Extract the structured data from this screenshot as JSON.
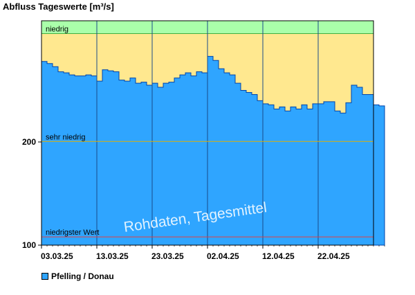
{
  "chart_data": {
    "type": "step-area",
    "title": "Abfluss Tageswerte [m³/s]",
    "y_ticks": [
      100,
      200
    ],
    "ylim": [
      100,
      300
    ],
    "x_tick_labels": [
      "03.03.25",
      "13.03.25",
      "23.03.25",
      "02.04.25",
      "12.04.25",
      "22.04.25"
    ],
    "bands": [
      {
        "name": "niedrig",
        "from": 305,
        "to": 320,
        "color": "#aaffaa"
      },
      {
        "name": "",
        "from": 200,
        "to": 305,
        "color": "#ffe88f"
      },
      {
        "name": "sehr niedrig",
        "from": 108,
        "to": 200,
        "color": "#ffc9a0"
      },
      {
        "name": "niedrigster Wert",
        "from": 100,
        "to": 108,
        "color": "#ff6464"
      }
    ],
    "band_lines": [
      {
        "label": "sehr niedrig",
        "value": 200.5,
        "color": "#e0b000"
      },
      {
        "label": "niedrigster Wert",
        "value": 108,
        "color": "#e04040"
      }
    ],
    "series": [
      {
        "name": "Pfelling / Donau",
        "color": "#2fa5ff",
        "start_date": "03.03.25",
        "values": [
          278,
          276,
          273,
          268,
          267,
          265,
          264,
          264,
          265,
          264,
          259,
          270,
          269,
          268,
          260,
          259,
          262,
          257,
          258,
          255,
          257,
          253,
          257,
          258,
          262,
          265,
          267,
          264,
          268,
          267,
          283,
          279,
          271,
          267,
          265,
          257,
          250,
          248,
          246,
          240,
          237,
          236,
          232,
          234,
          230,
          234,
          232,
          236,
          232,
          237,
          237,
          239,
          239,
          230,
          228,
          238,
          255,
          253,
          246,
          246,
          236,
          235
        ]
      }
    ],
    "annotation": "Rohdaten, Tagesmittel",
    "legend_position": "bottom-left"
  }
}
